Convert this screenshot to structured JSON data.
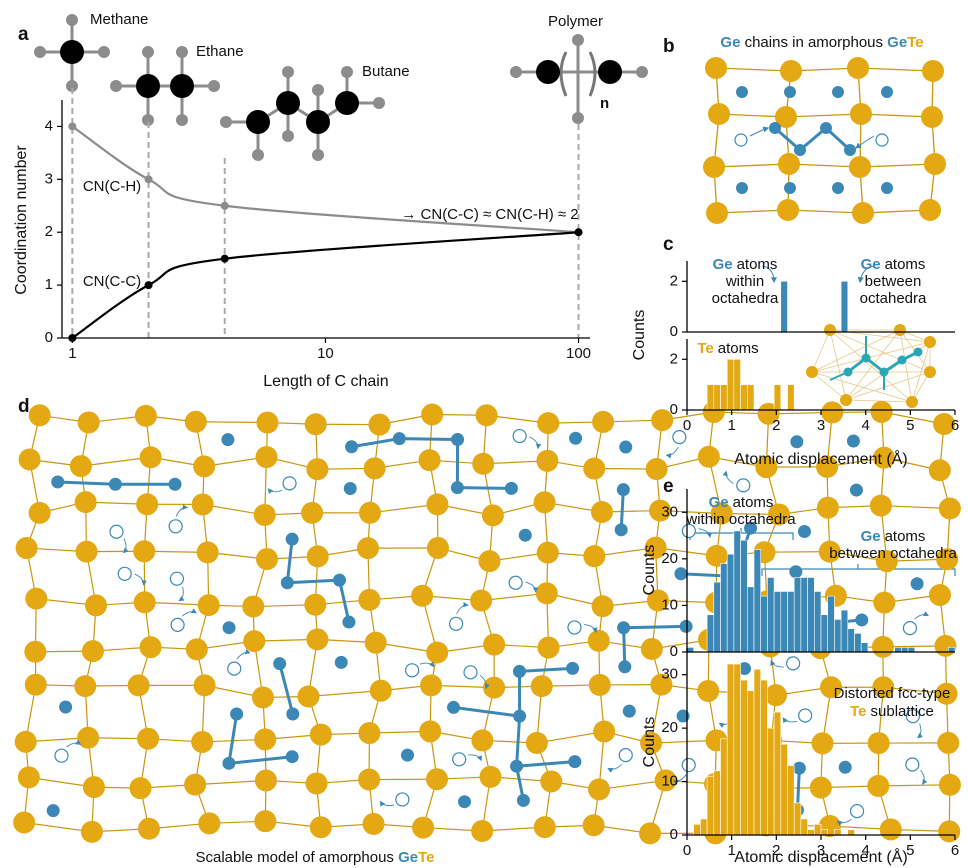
{
  "panel_labels": [
    "a",
    "b",
    "c",
    "d",
    "e"
  ],
  "molecules": [
    {
      "label": "Methane"
    },
    {
      "label": "Ethane"
    },
    {
      "label": "Butane"
    },
    {
      "label": "Polymer"
    }
  ],
  "polymer_subscript": "n",
  "diagram_b": {
    "title": [
      {
        "text": "Ge",
        "color": "#3b87b6"
      },
      {
        "text": " chains in amorphous "
      },
      {
        "text": "Ge",
        "color": "#3b87b6"
      },
      {
        "text": "Te",
        "color": "#e3a812"
      }
    ]
  },
  "diagram_d": {
    "caption": [
      {
        "text": "Scalable model of amorphous "
      },
      {
        "text": "Ge",
        "color": "#3b87b6"
      },
      {
        "text": "Te",
        "color": "#e3a812"
      }
    ]
  },
  "chart_data": [
    {
      "type": "line",
      "xlabel": "Length of C chain",
      "ylabel": "Coordination number",
      "xscale": "log",
      "xlim": [
        0.91,
        111
      ],
      "ylim": [
        0,
        4.5
      ],
      "xticks": [
        1,
        10,
        100
      ],
      "yticks": [
        0,
        1,
        2,
        3,
        4
      ],
      "x": [
        1,
        2,
        4,
        100
      ],
      "series": [
        {
          "name": "CN(C-H)",
          "color": "#8c8c8c",
          "values": [
            4,
            3,
            2.5,
            2
          ]
        },
        {
          "name": "CN(C-C)",
          "color": "#000000",
          "values": [
            0,
            1,
            1.5,
            2
          ]
        }
      ],
      "annotations": [
        "→ CN(C-C) ≈ CN(C-H) ≈ 2"
      ]
    },
    {
      "type": "histogram",
      "ylabel": "Counts",
      "color": "#3b87b6",
      "xlim": [
        0,
        6
      ],
      "ylim": [
        0,
        2.8
      ],
      "yticks": [
        0,
        2
      ],
      "bins": [
        0,
        0.15,
        0.3,
        0.45,
        0.6,
        0.75,
        0.9,
        1.05,
        1.2,
        1.35,
        1.5,
        1.65,
        1.8,
        1.95,
        2.1,
        2.25,
        2.4,
        2.55,
        2.7,
        2.85,
        3,
        3.15,
        3.3,
        3.45,
        3.6,
        3.75,
        3.9,
        4.05,
        4.2,
        4.35,
        4.5,
        4.65,
        4.8,
        4.95,
        5.1,
        5.25,
        5.4,
        5.55,
        5.7,
        5.85,
        6
      ],
      "values": [
        0,
        0,
        0,
        0,
        0,
        0,
        0,
        0,
        0,
        0,
        0,
        0,
        0,
        0,
        2,
        0,
        0,
        0,
        0,
        0,
        0,
        0,
        0,
        2,
        0,
        0,
        0,
        0,
        0,
        0,
        0,
        0,
        0,
        0,
        0,
        0,
        0,
        0,
        0,
        0
      ],
      "annotations": [
        {
          "element": "Ge",
          "color": "#3b87b6",
          "lines": [
            "atoms",
            "within",
            "octahedra"
          ]
        },
        {
          "element": "Ge",
          "color": "#3b87b6",
          "lines": [
            "atoms",
            "between",
            "octahedra"
          ]
        }
      ]
    },
    {
      "type": "histogram",
      "xlabel": "Atomic displacement (Å)",
      "color": "#e3a812",
      "xlim": [
        0,
        6
      ],
      "ylim": [
        0,
        2.8
      ],
      "xticks": [
        0,
        1,
        2,
        3,
        4,
        5,
        6
      ],
      "yticks": [
        0,
        2
      ],
      "bins": [
        0,
        0.15,
        0.3,
        0.45,
        0.6,
        0.75,
        0.9,
        1.05,
        1.2,
        1.35,
        1.5,
        1.65,
        1.8,
        1.95,
        2.1,
        2.25,
        2.4,
        2.55,
        2.7,
        2.85,
        3,
        3.15,
        3.3,
        3.45,
        3.6,
        3.75,
        3.9,
        4.05,
        4.2,
        4.35,
        4.5,
        4.65,
        4.8,
        4.95,
        5.1,
        5.25,
        5.4,
        5.55,
        5.7,
        5.85,
        6
      ],
      "values": [
        0,
        0,
        0,
        1,
        1,
        1,
        2,
        2,
        1,
        1,
        0,
        0,
        0,
        1,
        0,
        1,
        0,
        0,
        0,
        0,
        0,
        0,
        0,
        0,
        0,
        0,
        0,
        0,
        0,
        0,
        0,
        0,
        0,
        0,
        0,
        0,
        0,
        0,
        0,
        0
      ],
      "annotations": [
        {
          "element": "Te",
          "color": "#e3a812",
          "lines": [
            "atoms"
          ]
        }
      ]
    },
    {
      "type": "histogram",
      "ylabel": "Counts",
      "color": "#3b87b6",
      "xlim": [
        0,
        6
      ],
      "ylim": [
        0,
        35
      ],
      "yticks": [
        0,
        10,
        20,
        30
      ],
      "bins": [
        0,
        0.15,
        0.3,
        0.45,
        0.6,
        0.75,
        0.9,
        1.05,
        1.2,
        1.35,
        1.5,
        1.65,
        1.8,
        1.95,
        2.1,
        2.25,
        2.4,
        2.55,
        2.7,
        2.85,
        3,
        3.15,
        3.3,
        3.45,
        3.6,
        3.75,
        3.9,
        4.05,
        4.2,
        4.35,
        4.5,
        4.65,
        4.8,
        4.95,
        5.1,
        5.25,
        5.4,
        5.55,
        5.7,
        5.85,
        6
      ],
      "values": [
        1,
        0,
        0,
        8,
        15,
        19,
        21,
        26,
        24,
        14,
        22,
        12,
        16,
        13,
        13,
        13,
        16,
        16,
        16,
        13,
        8,
        12,
        7,
        9,
        5,
        4,
        2,
        0,
        0,
        0,
        0,
        1,
        1,
        1,
        0,
        0,
        0,
        0,
        0,
        1
      ],
      "annotations": [
        {
          "element": "Ge",
          "color": "#3b87b6",
          "lines": [
            "atoms",
            "within octahedra"
          ]
        },
        {
          "element": "Ge",
          "color": "#3b87b6",
          "lines": [
            "atoms",
            "between octahedra"
          ]
        }
      ]
    },
    {
      "type": "histogram",
      "xlabel": "Atomic displacement (Å)",
      "ylabel": "Counts",
      "color": "#e3a812",
      "xlim": [
        0,
        6
      ],
      "ylim": [
        0,
        35
      ],
      "xticks": [
        0,
        1,
        2,
        3,
        4,
        5,
        6
      ],
      "yticks": [
        0,
        10,
        20,
        30
      ],
      "bins": [
        0,
        0.15,
        0.3,
        0.45,
        0.6,
        0.75,
        0.9,
        1.05,
        1.2,
        1.35,
        1.5,
        1.65,
        1.8,
        1.95,
        2.1,
        2.25,
        2.4,
        2.55,
        2.7,
        2.85,
        3,
        3.15,
        3.3,
        3.45,
        3.6,
        3.75,
        3.9,
        4.05,
        4.2,
        4.35,
        4.5,
        4.65,
        4.8,
        4.95,
        5.1,
        5.25,
        5.4,
        5.55,
        5.7,
        5.85,
        6
      ],
      "values": [
        0,
        2,
        3,
        11,
        12,
        18,
        32,
        32,
        29,
        27,
        31,
        29,
        20,
        23,
        17,
        13,
        6,
        3,
        1,
        2,
        1,
        0,
        1,
        0,
        1,
        0,
        0,
        0,
        0,
        0,
        0,
        0,
        0,
        0,
        0,
        0,
        0,
        0,
        0,
        0
      ],
      "annotations": [
        {
          "lines": [
            "Distorted fcc-type"
          ]
        },
        {
          "element": "Te",
          "color": "#e3a812",
          "lines": [
            "sublattice"
          ]
        }
      ]
    }
  ]
}
